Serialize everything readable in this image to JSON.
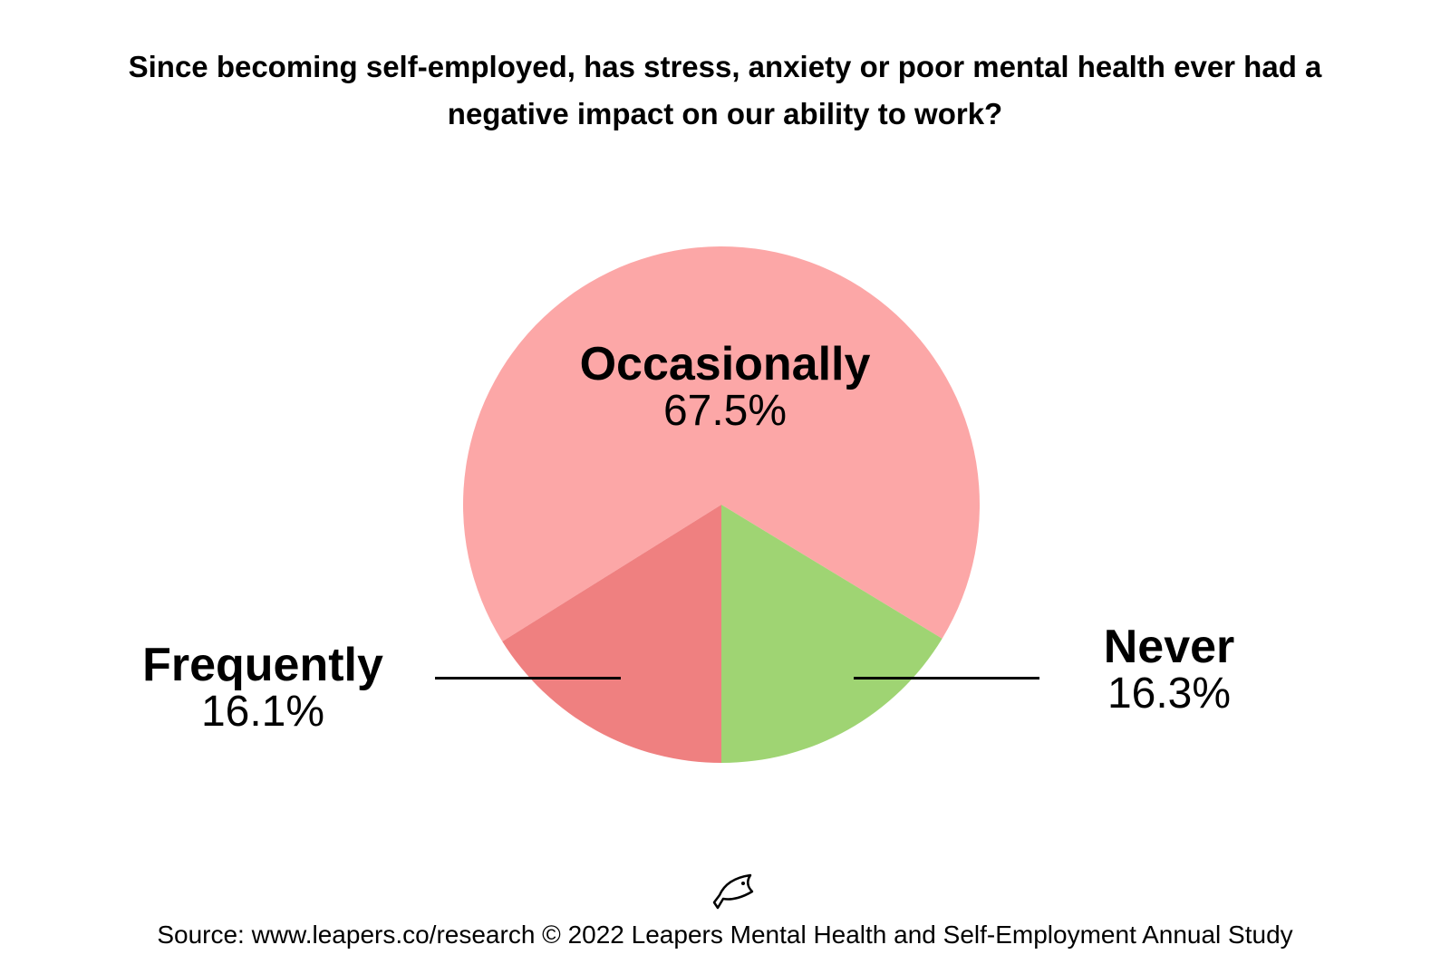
{
  "chart_data": {
    "type": "pie",
    "title": "Since becoming self-employed, has stress, anxiety or poor mental health ever had a negative impact on our ability to work?",
    "slices": [
      {
        "label": "Never",
        "value": 16.3,
        "display": "16.3%",
        "color": "#9fd473"
      },
      {
        "label": "Frequently",
        "value": 16.1,
        "display": "16.1%",
        "color": "#ef8080"
      },
      {
        "label": "Occasionally",
        "value": 67.5,
        "display": "67.5%",
        "color": "#fca7a7"
      }
    ]
  },
  "footer": {
    "logo_icon": "fish-icon",
    "source": "Source: www.leapers.co/research © 2022 Leapers Mental Health and Self-Employment Annual Study"
  }
}
